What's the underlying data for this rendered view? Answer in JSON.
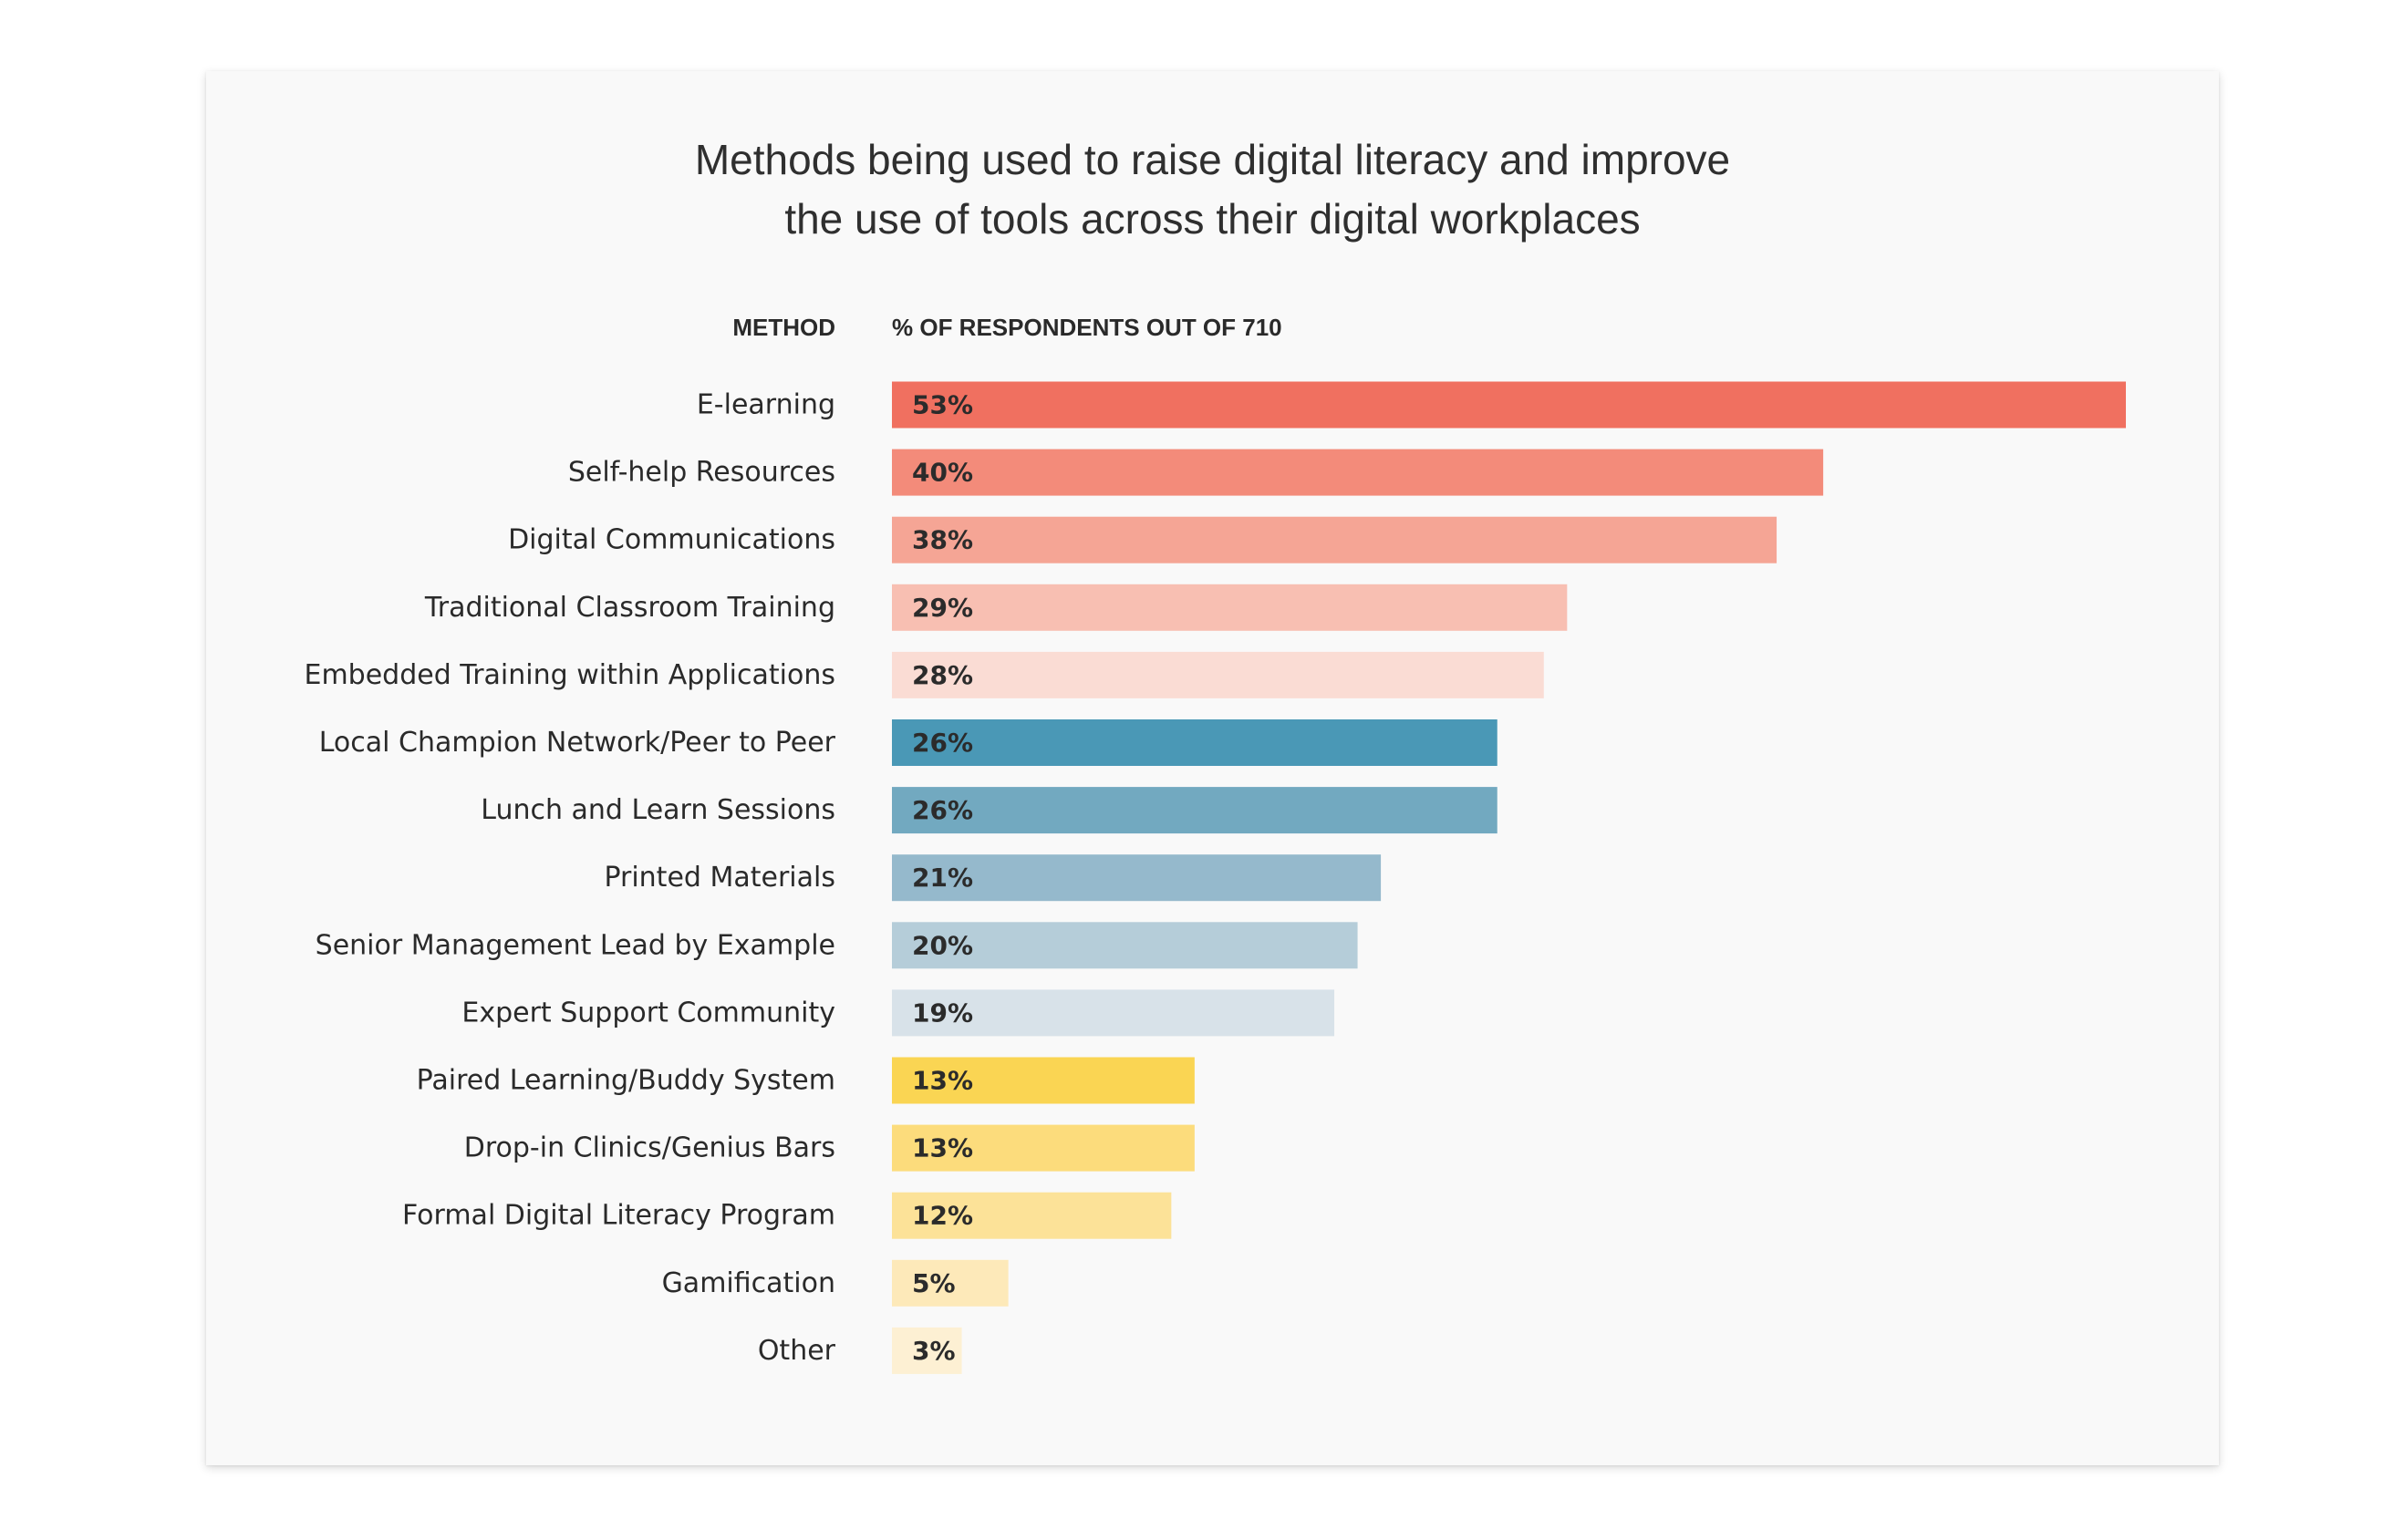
{
  "chart_data": {
    "type": "bar",
    "orientation": "horizontal",
    "title_lines": [
      "Methods being used to raise digital literacy and improve",
      "the use of tools across their digital workplaces"
    ],
    "category_header": "METHOD",
    "value_header": "% OF RESPONDENTS OUT OF 710",
    "categories": [
      "E-learning",
      "Self-help Resources",
      "Digital Communications",
      "Traditional Classroom Training",
      "Embedded Training within Applications",
      "Local Champion Network/Peer to Peer",
      "Lunch and Learn Sessions",
      "Printed Materials",
      "Senior Management Lead by Example",
      "Expert Support Community",
      "Paired Learning/Buddy System",
      "Drop-in Clinics/Genius Bars",
      "Formal Digital Literacy Program",
      "Gamification",
      "Other"
    ],
    "values": [
      53,
      40,
      38,
      29,
      28,
      26,
      26,
      21,
      20,
      19,
      13,
      13,
      12,
      5,
      3
    ],
    "value_labels": [
      "53%",
      "40%",
      "38%",
      "29%",
      "28%",
      "26%",
      "26%",
      "21%",
      "20%",
      "19%",
      "13%",
      "13%",
      "12%",
      "5%",
      "3%"
    ],
    "unit": "%",
    "xlim": [
      0,
      53
    ],
    "colors": [
      "#f07060",
      "#f38b7a",
      "#f5a595",
      "#f8bfb2",
      "#fadcd4",
      "#4a98b6",
      "#72a9c0",
      "#95b9cc",
      "#b5cdd9",
      "#d8e2e9",
      "#fad553",
      "#fcdc7c",
      "#fce298",
      "#fde9b9",
      "#fdf0d3"
    ],
    "grid": false,
    "legend": "none"
  }
}
